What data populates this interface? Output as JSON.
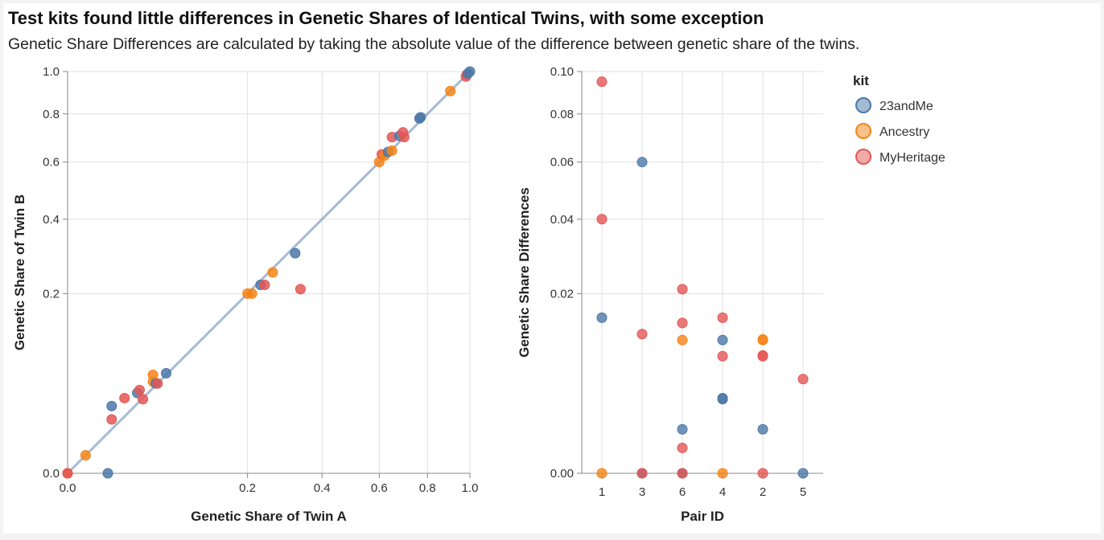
{
  "title": "Test kits found little differences in Genetic Shares of Identical Twins, with some exception",
  "subtitle": "Genetic Share Differences are calculated by taking the absolute value of the difference between genetic share of the twins.",
  "colors": {
    "23andMe": "#4c78a8",
    "Ancestry": "#f58518",
    "MyHeritage": "#e45756"
  },
  "chart_data": [
    {
      "type": "scatter",
      "xlabel": "Genetic Share of Twin A",
      "ylabel": "Genetic Share of Twin B",
      "x_scale": "sqrt",
      "y_scale": "sqrt",
      "xlim": [
        0,
        1
      ],
      "ylim": [
        0,
        1
      ],
      "x_ticks": [
        "0.0",
        "0.2",
        "0.4",
        "0.6",
        "0.8",
        "1.0"
      ],
      "y_ticks": [
        "0.0",
        "0.2",
        "0.4",
        "0.6",
        "0.8",
        "1.0"
      ],
      "grid": true,
      "reference_line": {
        "from": [
          0,
          0
        ],
        "to": [
          1,
          1
        ]
      },
      "points": [
        {
          "kit": "23andMe",
          "x": 0.0,
          "y": 0.0
        },
        {
          "kit": "Ancestry",
          "x": 0.0,
          "y": 0.0
        },
        {
          "kit": "MyHeritage",
          "x": 0.0,
          "y": 0.0
        },
        {
          "kit": "Ancestry",
          "x": 0.002,
          "y": 0.002
        },
        {
          "kit": "23andMe",
          "x": 0.01,
          "y": 0.0
        },
        {
          "kit": "23andMe",
          "x": 0.012,
          "y": 0.028
        },
        {
          "kit": "MyHeritage",
          "x": 0.012,
          "y": 0.018
        },
        {
          "kit": "MyHeritage",
          "x": 0.02,
          "y": 0.035
        },
        {
          "kit": "23andMe",
          "x": 0.03,
          "y": 0.04
        },
        {
          "kit": "MyHeritage",
          "x": 0.032,
          "y": 0.043
        },
        {
          "kit": "MyHeritage",
          "x": 0.035,
          "y": 0.034
        },
        {
          "kit": "Ancestry",
          "x": 0.045,
          "y": 0.06
        },
        {
          "kit": "Ancestry",
          "x": 0.045,
          "y": 0.052
        },
        {
          "kit": "23andMe",
          "x": 0.048,
          "y": 0.05
        },
        {
          "kit": "MyHeritage",
          "x": 0.05,
          "y": 0.05
        },
        {
          "kit": "23andMe",
          "x": 0.06,
          "y": 0.062
        },
        {
          "kit": "Ancestry",
          "x": 0.2,
          "y": 0.2
        },
        {
          "kit": "Ancestry",
          "x": 0.21,
          "y": 0.2
        },
        {
          "kit": "23andMe",
          "x": 0.23,
          "y": 0.22
        },
        {
          "kit": "MyHeritage",
          "x": 0.24,
          "y": 0.22
        },
        {
          "kit": "Ancestry",
          "x": 0.26,
          "y": 0.25
        },
        {
          "kit": "23andMe",
          "x": 0.32,
          "y": 0.3
        },
        {
          "kit": "MyHeritage",
          "x": 0.335,
          "y": 0.21
        },
        {
          "kit": "Ancestry",
          "x": 0.6,
          "y": 0.6
        },
        {
          "kit": "MyHeritage",
          "x": 0.61,
          "y": 0.63
        },
        {
          "kit": "Ancestry",
          "x": 0.62,
          "y": 0.625
        },
        {
          "kit": "23andMe",
          "x": 0.635,
          "y": 0.64
        },
        {
          "kit": "Ancestry",
          "x": 0.65,
          "y": 0.645
        },
        {
          "kit": "MyHeritage",
          "x": 0.65,
          "y": 0.7
        },
        {
          "kit": "23andMe",
          "x": 0.68,
          "y": 0.705
        },
        {
          "kit": "MyHeritage",
          "x": 0.695,
          "y": 0.72
        },
        {
          "kit": "MyHeritage",
          "x": 0.7,
          "y": 0.7
        },
        {
          "kit": "23andMe",
          "x": 0.765,
          "y": 0.78
        },
        {
          "kit": "23andMe",
          "x": 0.77,
          "y": 0.785
        },
        {
          "kit": "Ancestry",
          "x": 0.905,
          "y": 0.905
        },
        {
          "kit": "MyHeritage",
          "x": 0.98,
          "y": 0.975
        },
        {
          "kit": "MyHeritage",
          "x": 0.985,
          "y": 0.985
        },
        {
          "kit": "23andMe",
          "x": 0.99,
          "y": 0.99
        },
        {
          "kit": "23andMe",
          "x": 1.0,
          "y": 1.0
        }
      ]
    },
    {
      "type": "scatter",
      "xlabel": "Pair ID",
      "ylabel": "Genetic Share Differences",
      "y_scale": "sqrt",
      "ylim": [
        0,
        0.1
      ],
      "categories": [
        "1",
        "3",
        "6",
        "4",
        "2",
        "5"
      ],
      "y_ticks": [
        "0.00",
        "0.02",
        "0.04",
        "0.06",
        "0.08",
        "0.10"
      ],
      "grid": true,
      "points": [
        {
          "kit": "MyHeritage",
          "x": "1",
          "y": 0.095
        },
        {
          "kit": "MyHeritage",
          "x": "1",
          "y": 0.04
        },
        {
          "kit": "23andMe",
          "x": "1",
          "y": 0.015
        },
        {
          "kit": "Ancestry",
          "x": "1",
          "y": 0.0
        },
        {
          "kit": "23andMe",
          "x": "3",
          "y": 0.06
        },
        {
          "kit": "MyHeritage",
          "x": "3",
          "y": 0.012
        },
        {
          "kit": "23andMe",
          "x": "3",
          "y": 0.0
        },
        {
          "kit": "MyHeritage",
          "x": "3",
          "y": 0.0
        },
        {
          "kit": "MyHeritage",
          "x": "6",
          "y": 0.021
        },
        {
          "kit": "MyHeritage",
          "x": "6",
          "y": 0.014
        },
        {
          "kit": "Ancestry",
          "x": "6",
          "y": 0.011
        },
        {
          "kit": "23andMe",
          "x": "6",
          "y": 0.0012
        },
        {
          "kit": "MyHeritage",
          "x": "6",
          "y": 0.0004
        },
        {
          "kit": "23andMe",
          "x": "6",
          "y": 0.0
        },
        {
          "kit": "MyHeritage",
          "x": "6",
          "y": 0.0
        },
        {
          "kit": "MyHeritage",
          "x": "4",
          "y": 0.015
        },
        {
          "kit": "23andMe",
          "x": "4",
          "y": 0.011
        },
        {
          "kit": "MyHeritage",
          "x": "4",
          "y": 0.0085
        },
        {
          "kit": "23andMe",
          "x": "4",
          "y": 0.0035
        },
        {
          "kit": "23andMe",
          "x": "4",
          "y": 0.0034
        },
        {
          "kit": "Ancestry",
          "x": "4",
          "y": 0.0
        },
        {
          "kit": "Ancestry",
          "x": "2",
          "y": 0.011
        },
        {
          "kit": "Ancestry",
          "x": "2",
          "y": 0.0111
        },
        {
          "kit": "MyHeritage",
          "x": "2",
          "y": 0.0085
        },
        {
          "kit": "MyHeritage",
          "x": "2",
          "y": 0.0086
        },
        {
          "kit": "23andMe",
          "x": "2",
          "y": 0.0012
        },
        {
          "kit": "MyHeritage",
          "x": "2",
          "y": 0.0
        },
        {
          "kit": "MyHeritage",
          "x": "5",
          "y": 0.0055
        },
        {
          "kit": "23andMe",
          "x": "5",
          "y": 0.0
        }
      ]
    }
  ],
  "legend": {
    "title": "kit",
    "items": [
      "23andMe",
      "Ancestry",
      "MyHeritage"
    ]
  }
}
